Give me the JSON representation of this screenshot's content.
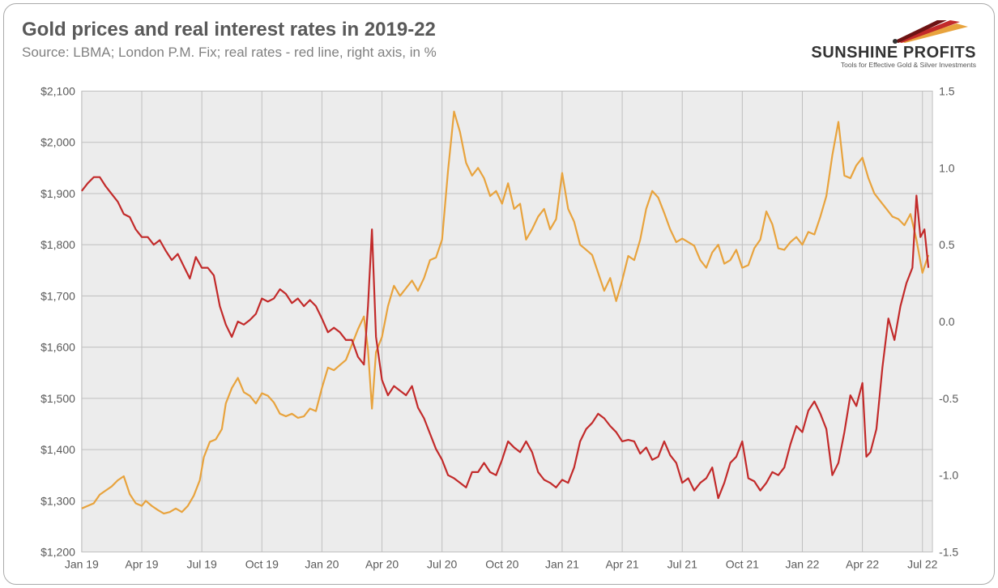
{
  "title": "Gold prices and real interest rates in 2019-22",
  "subtitle": "Source: LBMA; London P.M. Fix; real rates - red line, right axis, in %",
  "logo": {
    "main": "SUNSHINE PROFITS",
    "sub": "Tools for Effective Gold & Silver Investments"
  },
  "chart": {
    "type": "line",
    "background_color": "#ececec",
    "grid_color": "#bfbfbf",
    "axis_label_color": "#595959",
    "axis_label_fontsize": 14,
    "line_width": 2.2,
    "x_axis": {
      "min": 0,
      "max": 42.5,
      "ticks": [
        0,
        3,
        6,
        9,
        12,
        15,
        18,
        21,
        24,
        27,
        30,
        33,
        36,
        39,
        42
      ],
      "tick_labels": [
        "Jan 19",
        "Apr 19",
        "Jul 19",
        "Oct 19",
        "Jan 20",
        "Apr 20",
        "Jul 20",
        "Oct 20",
        "Jan 21",
        "Apr 21",
        "Jul 21",
        "Oct 21",
        "Jan 22",
        "Apr 22",
        "Jul 22"
      ]
    },
    "y_left": {
      "min": 1200,
      "max": 2100,
      "step": 100,
      "prefix": "$",
      "format": "comma"
    },
    "y_right": {
      "min": -1.5,
      "max": 1.5,
      "step": 0.5,
      "decimals": 1
    },
    "series": [
      {
        "name": "gold-price",
        "axis": "left",
        "color": "#e8a33d",
        "points": [
          [
            0,
            1285
          ],
          [
            0.3,
            1290
          ],
          [
            0.6,
            1295
          ],
          [
            0.9,
            1312
          ],
          [
            1.2,
            1320
          ],
          [
            1.5,
            1328
          ],
          [
            1.8,
            1340
          ],
          [
            2.1,
            1348
          ],
          [
            2.4,
            1313
          ],
          [
            2.7,
            1295
          ],
          [
            3,
            1290
          ],
          [
            3.2,
            1300
          ],
          [
            3.5,
            1290
          ],
          [
            3.8,
            1282
          ],
          [
            4.1,
            1275
          ],
          [
            4.4,
            1278
          ],
          [
            4.7,
            1285
          ],
          [
            5,
            1278
          ],
          [
            5.3,
            1290
          ],
          [
            5.6,
            1310
          ],
          [
            5.9,
            1340
          ],
          [
            6.1,
            1385
          ],
          [
            6.4,
            1415
          ],
          [
            6.7,
            1420
          ],
          [
            7,
            1440
          ],
          [
            7.2,
            1490
          ],
          [
            7.5,
            1520
          ],
          [
            7.8,
            1540
          ],
          [
            8.1,
            1512
          ],
          [
            8.4,
            1505
          ],
          [
            8.7,
            1490
          ],
          [
            9,
            1510
          ],
          [
            9.3,
            1505
          ],
          [
            9.6,
            1492
          ],
          [
            9.9,
            1470
          ],
          [
            10.2,
            1465
          ],
          [
            10.5,
            1470
          ],
          [
            10.8,
            1462
          ],
          [
            11.1,
            1465
          ],
          [
            11.4,
            1480
          ],
          [
            11.7,
            1475
          ],
          [
            12,
            1520
          ],
          [
            12.3,
            1560
          ],
          [
            12.6,
            1555
          ],
          [
            12.9,
            1565
          ],
          [
            13.2,
            1575
          ],
          [
            13.5,
            1605
          ],
          [
            13.8,
            1635
          ],
          [
            14.1,
            1660
          ],
          [
            14.3,
            1595
          ],
          [
            14.5,
            1480
          ],
          [
            14.7,
            1590
          ],
          [
            15,
            1620
          ],
          [
            15.3,
            1680
          ],
          [
            15.6,
            1720
          ],
          [
            15.9,
            1700
          ],
          [
            16.2,
            1715
          ],
          [
            16.5,
            1730
          ],
          [
            16.8,
            1710
          ],
          [
            17.1,
            1735
          ],
          [
            17.4,
            1770
          ],
          [
            17.7,
            1775
          ],
          [
            18,
            1810
          ],
          [
            18.3,
            1945
          ],
          [
            18.6,
            2060
          ],
          [
            18.9,
            2020
          ],
          [
            19.2,
            1960
          ],
          [
            19.5,
            1935
          ],
          [
            19.8,
            1950
          ],
          [
            20.1,
            1930
          ],
          [
            20.4,
            1895
          ],
          [
            20.7,
            1905
          ],
          [
            21,
            1880
          ],
          [
            21.3,
            1920
          ],
          [
            21.6,
            1870
          ],
          [
            21.9,
            1880
          ],
          [
            22.2,
            1810
          ],
          [
            22.5,
            1830
          ],
          [
            22.8,
            1855
          ],
          [
            23.1,
            1870
          ],
          [
            23.4,
            1830
          ],
          [
            23.7,
            1850
          ],
          [
            24,
            1940
          ],
          [
            24.3,
            1870
          ],
          [
            24.6,
            1845
          ],
          [
            24.9,
            1800
          ],
          [
            25.2,
            1790
          ],
          [
            25.5,
            1780
          ],
          [
            25.8,
            1745
          ],
          [
            26.1,
            1710
          ],
          [
            26.4,
            1735
          ],
          [
            26.7,
            1690
          ],
          [
            27,
            1730
          ],
          [
            27.3,
            1778
          ],
          [
            27.6,
            1770
          ],
          [
            27.9,
            1810
          ],
          [
            28.2,
            1870
          ],
          [
            28.5,
            1905
          ],
          [
            28.8,
            1892
          ],
          [
            29.1,
            1862
          ],
          [
            29.4,
            1830
          ],
          [
            29.7,
            1805
          ],
          [
            30,
            1812
          ],
          [
            30.3,
            1805
          ],
          [
            30.6,
            1798
          ],
          [
            30.9,
            1770
          ],
          [
            31.2,
            1755
          ],
          [
            31.5,
            1785
          ],
          [
            31.8,
            1800
          ],
          [
            32.1,
            1763
          ],
          [
            32.4,
            1770
          ],
          [
            32.7,
            1790
          ],
          [
            33,
            1755
          ],
          [
            33.3,
            1760
          ],
          [
            33.6,
            1793
          ],
          [
            33.9,
            1810
          ],
          [
            34.2,
            1865
          ],
          [
            34.5,
            1840
          ],
          [
            34.8,
            1793
          ],
          [
            35.1,
            1790
          ],
          [
            35.4,
            1805
          ],
          [
            35.7,
            1815
          ],
          [
            36,
            1800
          ],
          [
            36.3,
            1825
          ],
          [
            36.6,
            1820
          ],
          [
            36.9,
            1855
          ],
          [
            37.2,
            1895
          ],
          [
            37.5,
            1975
          ],
          [
            37.8,
            2040
          ],
          [
            38.1,
            1935
          ],
          [
            38.4,
            1930
          ],
          [
            38.7,
            1955
          ],
          [
            39,
            1970
          ],
          [
            39.3,
            1930
          ],
          [
            39.6,
            1900
          ],
          [
            39.9,
            1885
          ],
          [
            40.2,
            1870
          ],
          [
            40.5,
            1855
          ],
          [
            40.8,
            1850
          ],
          [
            41.1,
            1838
          ],
          [
            41.4,
            1860
          ],
          [
            41.7,
            1810
          ],
          [
            42,
            1745
          ],
          [
            42.3,
            1780
          ]
        ]
      },
      {
        "name": "real-rates",
        "axis": "right",
        "color": "#c22a2a",
        "points": [
          [
            0,
            0.85
          ],
          [
            0.3,
            0.9
          ],
          [
            0.6,
            0.94
          ],
          [
            0.9,
            0.94
          ],
          [
            1.2,
            0.88
          ],
          [
            1.5,
            0.83
          ],
          [
            1.8,
            0.78
          ],
          [
            2.1,
            0.7
          ],
          [
            2.4,
            0.68
          ],
          [
            2.7,
            0.6
          ],
          [
            3,
            0.55
          ],
          [
            3.3,
            0.55
          ],
          [
            3.6,
            0.5
          ],
          [
            3.9,
            0.53
          ],
          [
            4.2,
            0.46
          ],
          [
            4.5,
            0.4
          ],
          [
            4.8,
            0.44
          ],
          [
            5.1,
            0.36
          ],
          [
            5.4,
            0.28
          ],
          [
            5.7,
            0.42
          ],
          [
            6,
            0.35
          ],
          [
            6.3,
            0.35
          ],
          [
            6.6,
            0.3
          ],
          [
            6.9,
            0.1
          ],
          [
            7.2,
            -0.02
          ],
          [
            7.5,
            -0.1
          ],
          [
            7.8,
            0.0
          ],
          [
            8.1,
            -0.02
          ],
          [
            8.4,
            0.01
          ],
          [
            8.7,
            0.05
          ],
          [
            9,
            0.15
          ],
          [
            9.3,
            0.13
          ],
          [
            9.6,
            0.15
          ],
          [
            9.9,
            0.21
          ],
          [
            10.2,
            0.18
          ],
          [
            10.5,
            0.12
          ],
          [
            10.8,
            0.15
          ],
          [
            11.1,
            0.1
          ],
          [
            11.4,
            0.14
          ],
          [
            11.7,
            0.1
          ],
          [
            12,
            0.02
          ],
          [
            12.3,
            -0.07
          ],
          [
            12.6,
            -0.04
          ],
          [
            12.9,
            -0.07
          ],
          [
            13.2,
            -0.12
          ],
          [
            13.5,
            -0.12
          ],
          [
            13.8,
            -0.23
          ],
          [
            14.1,
            -0.28
          ],
          [
            14.3,
            0.1
          ],
          [
            14.5,
            0.6
          ],
          [
            14.7,
            -0.1
          ],
          [
            15,
            -0.38
          ],
          [
            15.3,
            -0.48
          ],
          [
            15.6,
            -0.42
          ],
          [
            15.9,
            -0.45
          ],
          [
            16.2,
            -0.48
          ],
          [
            16.5,
            -0.42
          ],
          [
            16.8,
            -0.56
          ],
          [
            17.1,
            -0.63
          ],
          [
            17.4,
            -0.73
          ],
          [
            17.7,
            -0.83
          ],
          [
            18,
            -0.9
          ],
          [
            18.3,
            -1.0
          ],
          [
            18.6,
            -1.02
          ],
          [
            18.9,
            -1.05
          ],
          [
            19.2,
            -1.08
          ],
          [
            19.5,
            -0.98
          ],
          [
            19.8,
            -0.98
          ],
          [
            20.1,
            -0.92
          ],
          [
            20.4,
            -0.98
          ],
          [
            20.7,
            -1.0
          ],
          [
            21,
            -0.9
          ],
          [
            21.3,
            -0.78
          ],
          [
            21.6,
            -0.82
          ],
          [
            21.9,
            -0.85
          ],
          [
            22.2,
            -0.78
          ],
          [
            22.5,
            -0.85
          ],
          [
            22.8,
            -0.98
          ],
          [
            23.1,
            -1.03
          ],
          [
            23.4,
            -1.05
          ],
          [
            23.7,
            -1.08
          ],
          [
            24,
            -1.03
          ],
          [
            24.3,
            -1.05
          ],
          [
            24.6,
            -0.95
          ],
          [
            24.9,
            -0.78
          ],
          [
            25.2,
            -0.7
          ],
          [
            25.5,
            -0.66
          ],
          [
            25.8,
            -0.6
          ],
          [
            26.1,
            -0.63
          ],
          [
            26.4,
            -0.68
          ],
          [
            26.7,
            -0.72
          ],
          [
            27,
            -0.78
          ],
          [
            27.3,
            -0.77
          ],
          [
            27.6,
            -0.78
          ],
          [
            27.9,
            -0.86
          ],
          [
            28.2,
            -0.82
          ],
          [
            28.5,
            -0.9
          ],
          [
            28.8,
            -0.88
          ],
          [
            29.1,
            -0.78
          ],
          [
            29.4,
            -0.87
          ],
          [
            29.7,
            -0.92
          ],
          [
            30,
            -1.05
          ],
          [
            30.3,
            -1.02
          ],
          [
            30.6,
            -1.1
          ],
          [
            30.9,
            -1.05
          ],
          [
            31.2,
            -1.02
          ],
          [
            31.5,
            -0.95
          ],
          [
            31.8,
            -1.15
          ],
          [
            32.1,
            -1.05
          ],
          [
            32.4,
            -0.92
          ],
          [
            32.7,
            -0.88
          ],
          [
            33,
            -0.78
          ],
          [
            33.3,
            -1.02
          ],
          [
            33.6,
            -1.04
          ],
          [
            33.9,
            -1.1
          ],
          [
            34.2,
            -1.05
          ],
          [
            34.5,
            -0.98
          ],
          [
            34.8,
            -1.0
          ],
          [
            35.1,
            -0.95
          ],
          [
            35.4,
            -0.8
          ],
          [
            35.7,
            -0.68
          ],
          [
            36,
            -0.72
          ],
          [
            36.3,
            -0.58
          ],
          [
            36.6,
            -0.52
          ],
          [
            36.9,
            -0.6
          ],
          [
            37.2,
            -0.7
          ],
          [
            37.5,
            -1.0
          ],
          [
            37.8,
            -0.92
          ],
          [
            38.1,
            -0.72
          ],
          [
            38.4,
            -0.48
          ],
          [
            38.7,
            -0.55
          ],
          [
            39,
            -0.4
          ],
          [
            39.2,
            -0.88
          ],
          [
            39.4,
            -0.85
          ],
          [
            39.7,
            -0.7
          ],
          [
            40,
            -0.3
          ],
          [
            40.3,
            0.02
          ],
          [
            40.6,
            -0.12
          ],
          [
            40.9,
            0.1
          ],
          [
            41.2,
            0.25
          ],
          [
            41.5,
            0.35
          ],
          [
            41.7,
            0.82
          ],
          [
            41.9,
            0.55
          ],
          [
            42.1,
            0.6
          ],
          [
            42.3,
            0.35
          ]
        ]
      }
    ]
  }
}
